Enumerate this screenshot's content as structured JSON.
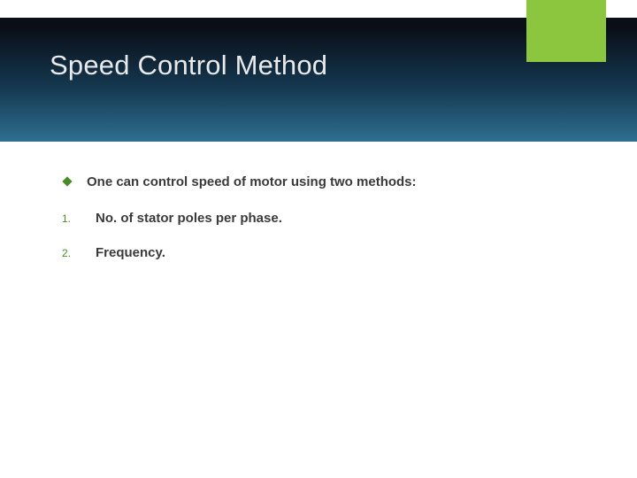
{
  "slide": {
    "title": "Speed Control Method",
    "accent_color": "#8cc63f",
    "bullet_diamond_color": "#4a8a2a",
    "number_color": "#4a8a2a",
    "text_color": "#3a3a3a",
    "intro": "One can control speed of motor using two methods:",
    "items": [
      {
        "num": "1.",
        "text": "No. of stator poles per phase."
      },
      {
        "num": "2.",
        "text": "Frequency."
      }
    ]
  }
}
